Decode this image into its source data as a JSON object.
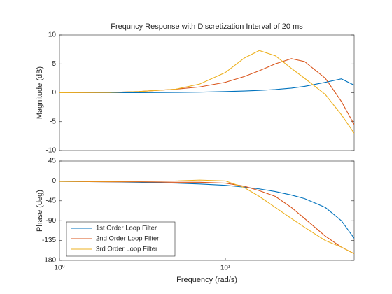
{
  "chart_data": [
    {
      "type": "line",
      "title": "Frequncy Response with Discretization Interval of 20 ms",
      "y_label": "Magnitude (dB)",
      "x": [
        1,
        2,
        3,
        5,
        7,
        10,
        13,
        16,
        20,
        25,
        30,
        40,
        50,
        59.7
      ],
      "xlim": [
        1,
        59.7
      ],
      "xscale": "log",
      "ylim": [
        -10,
        10
      ],
      "yticks": [
        -10,
        -5,
        0,
        5,
        10
      ],
      "series": [
        {
          "name": "1st Order Loop Filter",
          "color": "#0072BD",
          "values": [
            0,
            0,
            0,
            0.05,
            0.1,
            0.2,
            0.3,
            0.4,
            0.55,
            0.8,
            1.1,
            1.8,
            2.4,
            1.3
          ]
        },
        {
          "name": "2nd Order Loop Filter",
          "color": "#D95319",
          "values": [
            0,
            0.05,
            0.2,
            0.6,
            1.0,
            1.8,
            2.8,
            3.8,
            5.0,
            5.9,
            5.4,
            2.5,
            -1.5,
            -5.5
          ]
        },
        {
          "name": "3rd Order Loop Filter",
          "color": "#EDB120",
          "values": [
            0,
            0.05,
            0.2,
            0.6,
            1.5,
            3.5,
            6.0,
            7.3,
            6.4,
            4.2,
            2.5,
            -0.3,
            -3.8,
            -7
          ]
        }
      ]
    },
    {
      "type": "line",
      "x_label": "Frequency  (rad/s)",
      "y_label": "Phase (deg)",
      "x": [
        1,
        2,
        3,
        5,
        7,
        10,
        13,
        16,
        20,
        25,
        30,
        40,
        50,
        59.7
      ],
      "xlim": [
        1,
        59.7
      ],
      "xscale": "log",
      "xticks": [
        {
          "value": 1,
          "label": "10⁰"
        },
        {
          "value": 10,
          "label": "10¹"
        }
      ],
      "ylim": [
        -180,
        45
      ],
      "yticks": [
        45,
        0,
        -45,
        -90,
        -135,
        -180
      ],
      "legend": "lower left",
      "series": [
        {
          "name": "1st Order Loop Filter",
          "color": "#0072BD",
          "values": [
            -1,
            -2,
            -3,
            -5,
            -7,
            -10,
            -14,
            -18,
            -24,
            -32,
            -40,
            -60,
            -90,
            -130
          ]
        },
        {
          "name": "2nd Order Loop Filter",
          "color": "#D95319",
          "values": [
            -1,
            -2,
            -2,
            -3,
            -3,
            -5,
            -12,
            -22,
            -35,
            -60,
            -85,
            -125,
            -150,
            -165
          ]
        },
        {
          "name": "3rd Order Loop Filter",
          "color": "#EDB120",
          "values": [
            -1,
            -1,
            -0.5,
            0,
            2,
            0,
            -15,
            -35,
            -60,
            -85,
            -105,
            -135,
            -150,
            -165
          ]
        }
      ]
    }
  ]
}
